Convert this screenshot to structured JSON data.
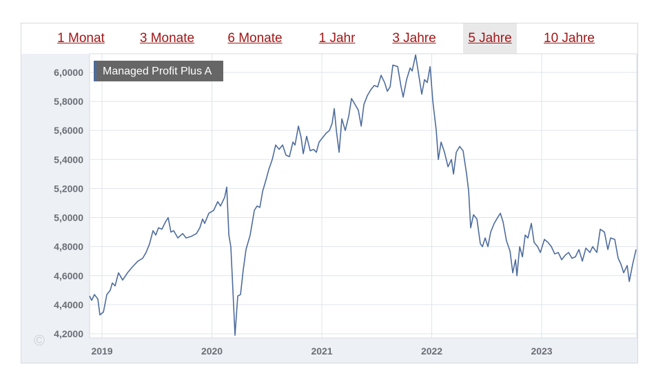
{
  "tabs": {
    "items": [
      "1 Monat",
      "3 Monate",
      "6 Monate",
      "1 Jahr",
      "3 Jahre",
      "5 Jahre",
      "10 Jahre"
    ],
    "selected": 5
  },
  "chart_data": {
    "type": "line",
    "series": [
      {
        "name": "Managed Profit Plus A",
        "color": "#4c6b9c",
        "x": [
          2018.887,
          2018.906,
          2018.931,
          2018.962,
          2018.981,
          2019.013,
          2019.044,
          2019.075,
          2019.094,
          2019.119,
          2019.15,
          2019.188,
          2019.232,
          2019.276,
          2019.326,
          2019.37,
          2019.401,
          2019.433,
          2019.464,
          2019.489,
          2019.514,
          2019.545,
          2019.577,
          2019.602,
          2019.627,
          2019.652,
          2019.69,
          2019.734,
          2019.765,
          2019.809,
          2019.859,
          2019.89,
          2019.915,
          2019.934,
          2019.972,
          2020.016,
          2020.053,
          2020.078,
          2020.116,
          2020.135,
          2020.154,
          2020.172,
          2020.191,
          2020.21,
          2020.235,
          2020.26,
          2020.285,
          2020.31,
          2020.348,
          2020.386,
          2020.411,
          2020.436,
          2020.461,
          2020.492,
          2020.517,
          2020.549,
          2020.58,
          2020.611,
          2020.643,
          2020.674,
          2020.705,
          2020.737,
          2020.756,
          2020.787,
          2020.812,
          2020.831,
          2020.862,
          2020.894,
          2020.925,
          2020.95,
          2020.975,
          2021.006,
          2021.038,
          2021.069,
          2021.094,
          2021.113,
          2021.132,
          2021.157,
          2021.182,
          2021.213,
          2021.245,
          2021.27,
          2021.301,
          2021.332,
          2021.358,
          2021.383,
          2021.414,
          2021.445,
          2021.477,
          2021.508,
          2021.539,
          2021.571,
          2021.596,
          2021.621,
          2021.646,
          2021.69,
          2021.721,
          2021.74,
          2021.771,
          2021.803,
          2021.822,
          2021.853,
          2021.878,
          2021.909,
          2021.934,
          2021.959,
          2021.985,
          2022.01,
          2022.041,
          2022.06,
          2022.085,
          2022.116,
          2022.148,
          2022.179,
          2022.198,
          2022.223,
          2022.254,
          2022.285,
          2022.317,
          2022.336,
          2022.354,
          2022.38,
          2022.411,
          2022.442,
          2022.461,
          2022.486,
          2022.511,
          2022.536,
          2022.568,
          2022.599,
          2022.624,
          2022.649,
          2022.68,
          2022.712,
          2022.737,
          2022.762,
          2022.775,
          2022.8,
          2022.825,
          2022.85,
          2022.875,
          2022.906,
          2022.931,
          2022.963,
          2022.988,
          2023.025,
          2023.057,
          2023.088,
          2023.119,
          2023.151,
          2023.182,
          2023.213,
          2023.245,
          2023.276,
          2023.307,
          2023.339,
          2023.37,
          2023.402,
          2023.439,
          2023.464,
          2023.502,
          2023.533,
          2023.571,
          2023.602,
          2023.627,
          2023.665,
          2023.696,
          2023.721,
          2023.746,
          2023.778,
          2023.797,
          2023.828,
          2023.859
        ],
        "values": [
          4.46,
          4.43,
          4.47,
          4.44,
          4.33,
          4.35,
          4.47,
          4.5,
          4.55,
          4.53,
          4.62,
          4.57,
          4.62,
          4.66,
          4.7,
          4.72,
          4.76,
          4.82,
          4.91,
          4.88,
          4.93,
          4.92,
          4.97,
          5.0,
          4.9,
          4.91,
          4.86,
          4.89,
          4.86,
          4.87,
          4.89,
          4.93,
          4.99,
          4.96,
          5.03,
          5.05,
          5.11,
          5.08,
          5.14,
          5.21,
          4.88,
          4.8,
          4.5,
          4.19,
          4.46,
          4.47,
          4.64,
          4.78,
          4.88,
          5.05,
          5.08,
          5.07,
          5.18,
          5.26,
          5.33,
          5.4,
          5.5,
          5.47,
          5.5,
          5.43,
          5.42,
          5.52,
          5.5,
          5.63,
          5.55,
          5.44,
          5.56,
          5.46,
          5.47,
          5.45,
          5.52,
          5.55,
          5.58,
          5.6,
          5.65,
          5.75,
          5.6,
          5.45,
          5.68,
          5.6,
          5.7,
          5.82,
          5.78,
          5.74,
          5.63,
          5.78,
          5.84,
          5.88,
          5.91,
          5.9,
          5.98,
          5.93,
          5.87,
          5.9,
          6.05,
          6.04,
          5.9,
          5.83,
          5.95,
          6.03,
          6.01,
          6.12,
          6.0,
          5.85,
          5.95,
          5.93,
          6.04,
          5.8,
          5.6,
          5.4,
          5.52,
          5.45,
          5.35,
          5.4,
          5.3,
          5.45,
          5.49,
          5.46,
          5.3,
          5.18,
          4.93,
          5.02,
          4.99,
          4.82,
          4.8,
          4.86,
          4.8,
          4.9,
          4.96,
          5.0,
          5.03,
          4.97,
          4.84,
          4.77,
          4.62,
          4.71,
          4.6,
          4.8,
          4.73,
          4.88,
          4.86,
          4.96,
          4.83,
          4.8,
          4.76,
          4.85,
          4.83,
          4.8,
          4.75,
          4.76,
          4.71,
          4.74,
          4.76,
          4.72,
          4.73,
          4.78,
          4.7,
          4.79,
          4.76,
          4.8,
          4.76,
          4.92,
          4.9,
          4.78,
          4.86,
          4.85,
          4.72,
          4.68,
          4.62,
          4.67,
          4.56,
          4.68,
          4.78
        ]
      }
    ],
    "xlim": [
      2018.887,
      2023.865
    ],
    "xticks": [
      2019,
      2020,
      2021,
      2022,
      2023
    ],
    "ylim": [
      4.1715,
      6.128
    ],
    "yticks": [
      {
        "value": 4.2,
        "label": "4,2000"
      },
      {
        "value": 4.4,
        "label": "4,4000"
      },
      {
        "value": 4.6,
        "label": "4,6000"
      },
      {
        "value": 4.8,
        "label": "4,8000"
      },
      {
        "value": 5.0,
        "label": "5,0000"
      },
      {
        "value": 5.2,
        "label": "5,2000"
      },
      {
        "value": 5.4,
        "label": "5,4000"
      },
      {
        "value": 5.6,
        "label": "5,6000"
      },
      {
        "value": 5.8,
        "label": "5,8000"
      },
      {
        "value": 6.0,
        "label": "6,0000"
      }
    ],
    "grid": true
  }
}
